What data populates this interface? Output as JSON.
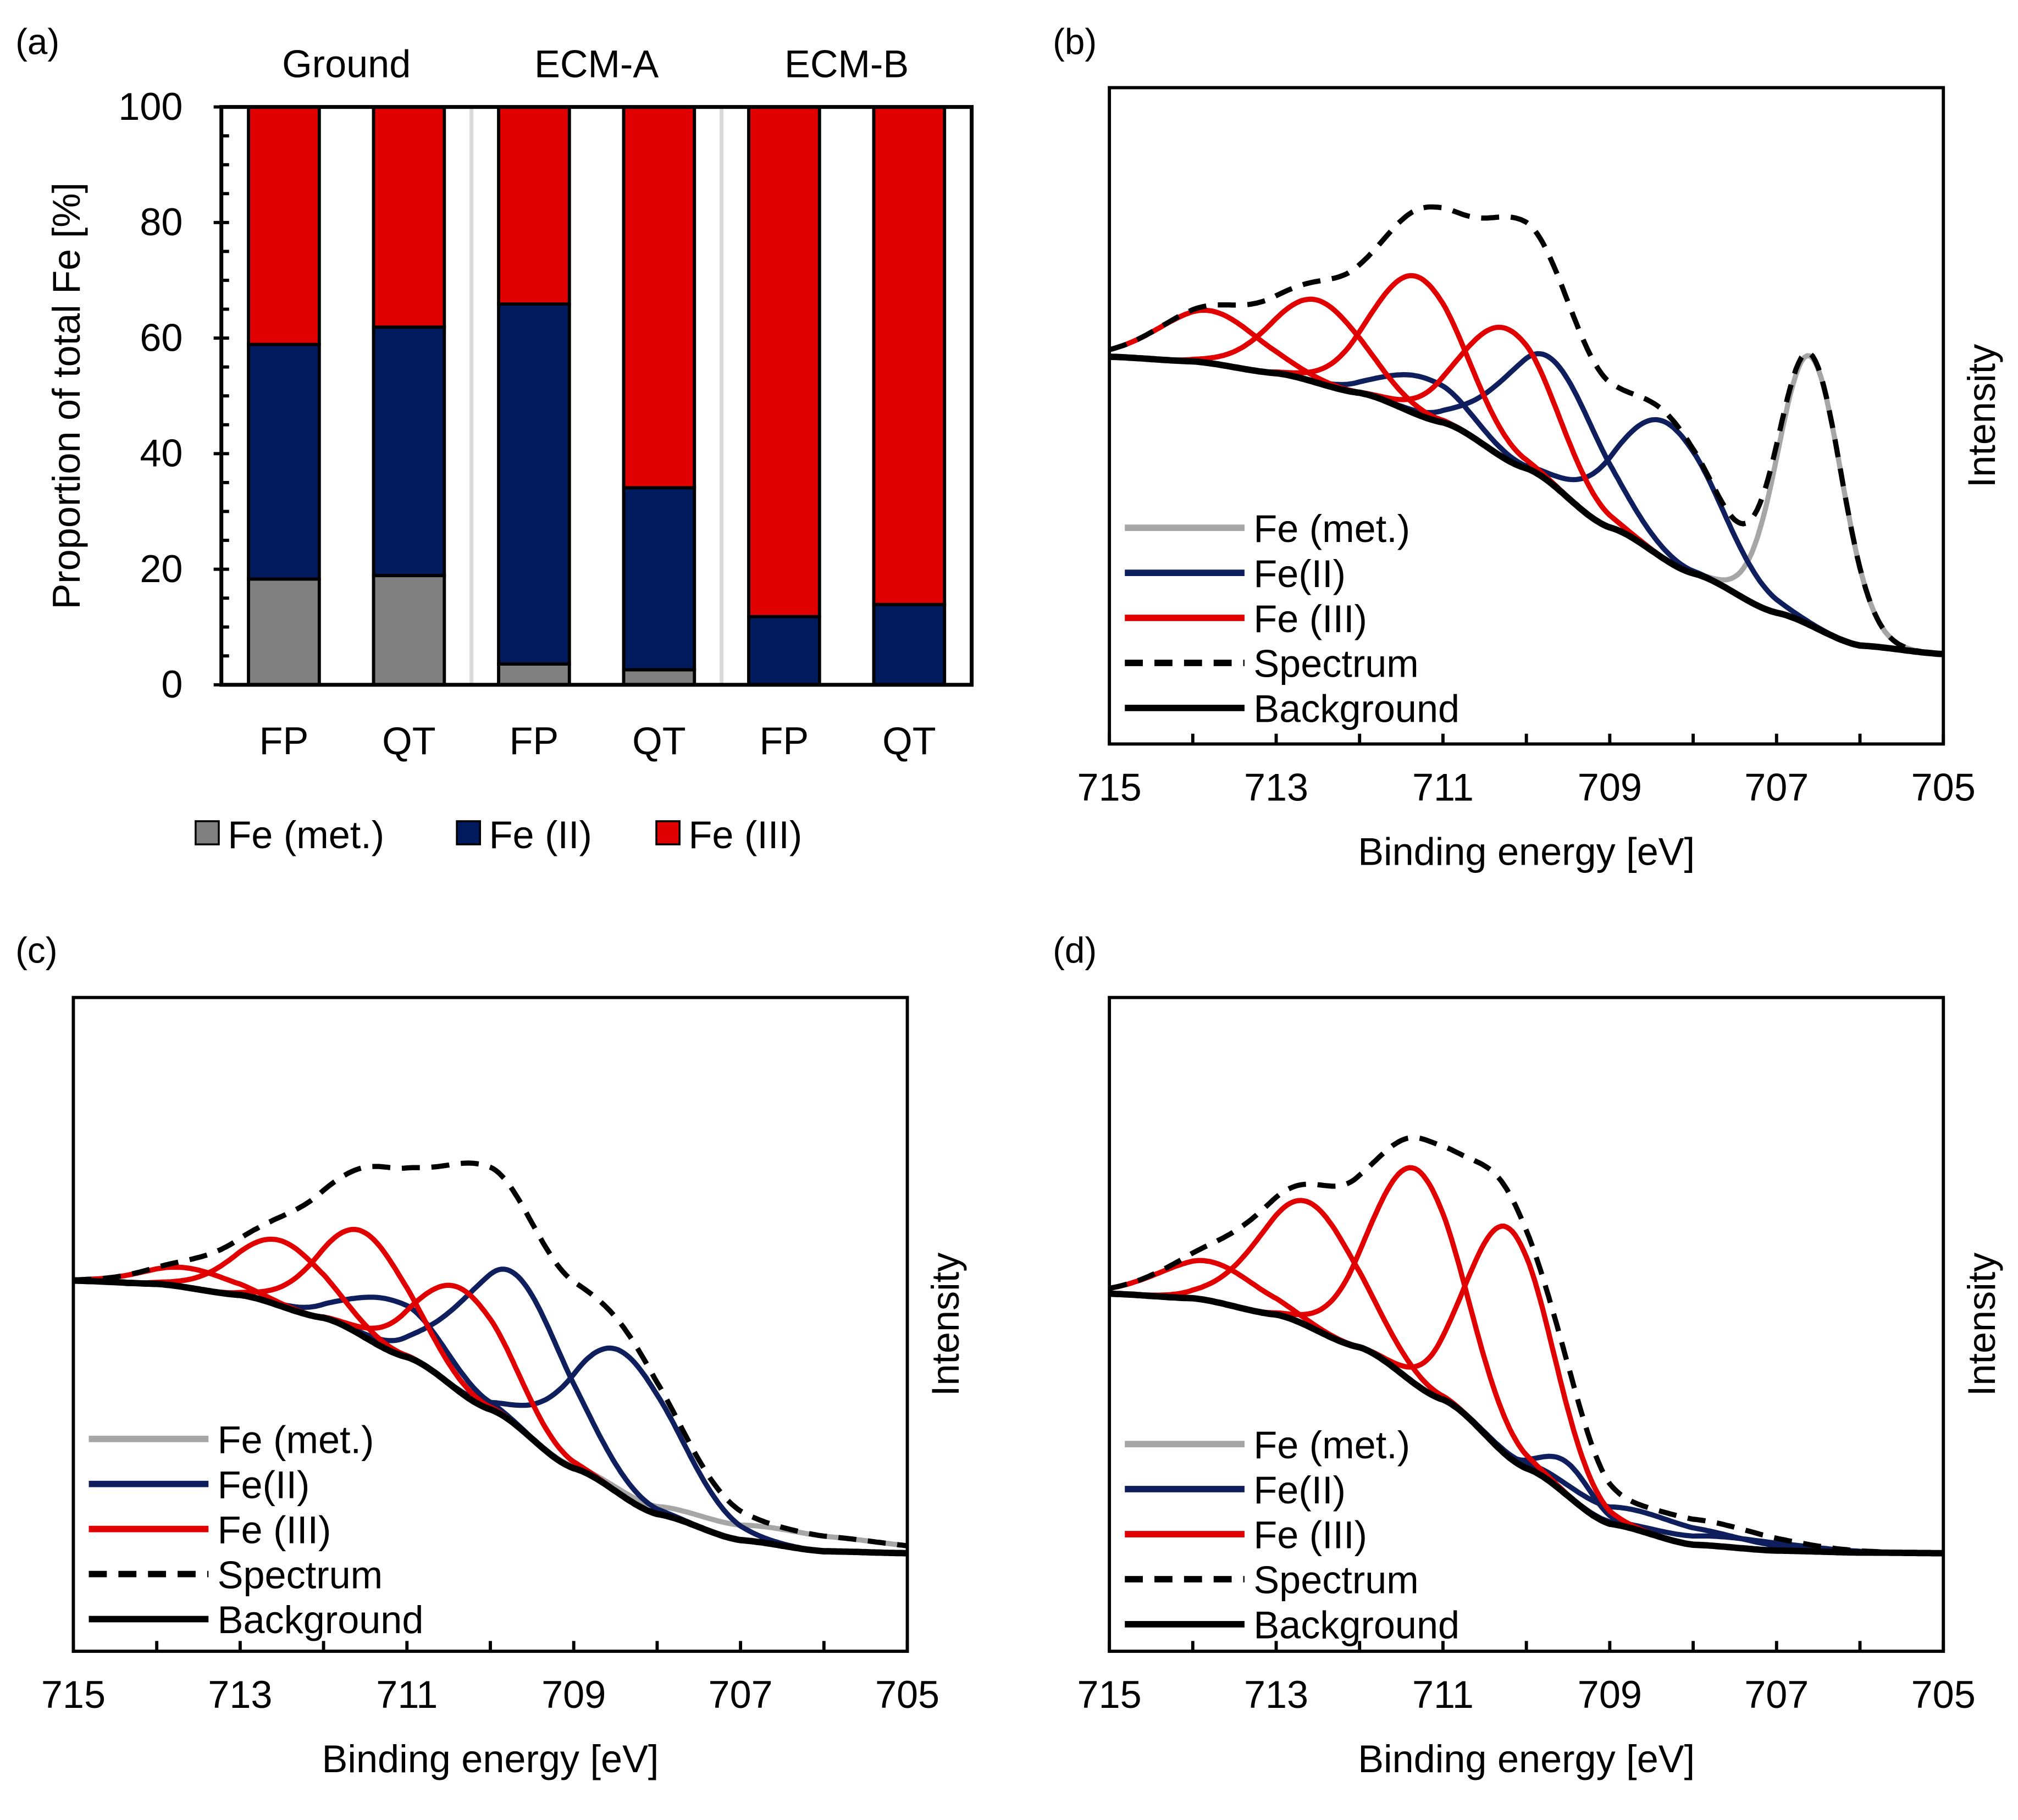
{
  "chart_data": [
    {
      "panel": "(a)",
      "type": "bar",
      "stacked": true,
      "groups": [
        "Ground",
        "ECM-A",
        "ECM-B"
      ],
      "categories": [
        "FP",
        "QT",
        "FP",
        "QT",
        "FP",
        "QT"
      ],
      "series": [
        {
          "name": "Fe (met.)",
          "color": "#808080",
          "values": [
            18.3,
            18.9,
            3.6,
            2.6,
            0,
            0
          ]
        },
        {
          "name": "Fe (II)",
          "color": "#001a5e",
          "values": [
            40.6,
            43.0,
            62.3,
            31.5,
            11.8,
            13.9
          ]
        },
        {
          "name": "Fe (III)",
          "color": "#e00000",
          "values": [
            41.1,
            38.1,
            34.1,
            65.9,
            88.2,
            86.1
          ]
        }
      ],
      "ylabel": "Proportion of total Fe [%]",
      "ylim": [
        0,
        100
      ],
      "yticks": [
        "0",
        "20",
        "40",
        "60",
        "80",
        "100"
      ],
      "legend": "bottom"
    },
    {
      "panel": "(b)",
      "type": "line",
      "xlabel": "Binding energy [eV]",
      "ylabel": "Intensity",
      "xlim": [
        715,
        705
      ],
      "xticks": [
        "715",
        "713",
        "711",
        "709",
        "707",
        "705"
      ],
      "legend_labels": [
        "Fe (met.)",
        "Fe(II)",
        "Fe (III)",
        "Spectrum",
        "Background"
      ],
      "background": {
        "x": [
          715,
          714,
          713,
          712,
          711,
          710,
          709,
          708,
          707,
          706,
          705
        ],
        "y": [
          59,
          58.3,
          56.5,
          53.5,
          49,
          42,
          33,
          26,
          20,
          15,
          13.7
        ]
      },
      "components": {
        "met": [
          {
            "center": 706.6,
            "amp": 41,
            "sigma": 0.38
          }
        ],
        "fe2": [
          {
            "center": 711.2,
            "amp": 6,
            "sigma": 0.5
          },
          {
            "center": 709.7,
            "amp": 19,
            "sigma": 0.6
          },
          {
            "center": 708.3,
            "amp": 21,
            "sigma": 0.6
          }
        ],
        "fe3": [
          {
            "center": 713.8,
            "amp": 8,
            "sigma": 0.6
          },
          {
            "center": 712.5,
            "amp": 12.6,
            "sigma": 0.55
          },
          {
            "center": 711.3,
            "amp": 21,
            "sigma": 0.55
          },
          {
            "center": 710.2,
            "amp": 20,
            "sigma": 0.55
          }
        ]
      }
    },
    {
      "panel": "(c)",
      "type": "line",
      "xlabel": "Binding energy [eV]",
      "ylabel": "Intensity",
      "xlim": [
        715,
        705
      ],
      "xticks": [
        "715",
        "713",
        "711",
        "709",
        "707",
        "705"
      ],
      "legend_labels": [
        "Fe (met.)",
        "Fe(II)",
        "Fe (III)",
        "Spectrum",
        "Background"
      ],
      "background": {
        "x": [
          715,
          714,
          713,
          712,
          711,
          710,
          709,
          708,
          707,
          706,
          705
        ],
        "y": [
          56.7,
          56.2,
          54.5,
          51,
          45,
          37,
          28,
          21,
          17,
          15.3,
          15
        ]
      },
      "components": {
        "met": [
          {
            "center": 706.5,
            "amp": 2.5,
            "sigma": 1.2
          }
        ],
        "fe2": [
          {
            "center": 711.1,
            "amp": 8,
            "sigma": 0.55
          },
          {
            "center": 709.7,
            "amp": 23,
            "sigma": 0.65
          },
          {
            "center": 708.4,
            "amp": 22,
            "sigma": 0.65
          }
        ],
        "fe3": [
          {
            "center": 713.6,
            "amp": 3,
            "sigma": 0.55
          },
          {
            "center": 712.5,
            "amp": 10,
            "sigma": 0.55
          },
          {
            "center": 711.5,
            "amp": 16,
            "sigma": 0.55
          },
          {
            "center": 710.3,
            "amp": 16,
            "sigma": 0.55
          }
        ]
      }
    },
    {
      "panel": "(d)",
      "type": "line",
      "xlabel": "Binding energy [eV]",
      "ylabel": "Intensity",
      "xlim": [
        715,
        705
      ],
      "xticks": [
        "715",
        "713",
        "711",
        "709",
        "707",
        "705"
      ],
      "legend_labels": [
        "Fe (met.)",
        "Fe(II)",
        "Fe (III)",
        "Spectrum",
        "Background"
      ],
      "background": {
        "x": [
          715,
          714,
          713,
          712,
          711,
          710,
          709,
          708,
          707,
          706,
          705
        ],
        "y": [
          54.7,
          54,
          51.5,
          46.5,
          38.5,
          28,
          19.5,
          16.3,
          15.4,
          15.1,
          15
        ]
      },
      "components": {
        "met": [],
        "fe2": [
          {
            "center": 709.5,
            "amp": 5,
            "sigma": 0.3
          },
          {
            "center": 708.5,
            "amp": 3,
            "sigma": 0.9
          },
          {
            "center": 707.6,
            "amp": 1.5,
            "sigma": 0.8
          }
        ],
        "fe3": [
          {
            "center": 713.8,
            "amp": 6,
            "sigma": 0.6
          },
          {
            "center": 712.6,
            "amp": 19,
            "sigma": 0.6
          },
          {
            "center": 711.3,
            "amp": 33,
            "sigma": 0.55
          },
          {
            "center": 710.2,
            "amp": 35,
            "sigma": 0.5
          }
        ]
      }
    }
  ],
  "colors": {
    "met_line": "#a6a6a6",
    "fe2_line": "#0f1f5e",
    "fe3_line": "#e00000",
    "spectrum": "#000000",
    "background": "#000000"
  }
}
